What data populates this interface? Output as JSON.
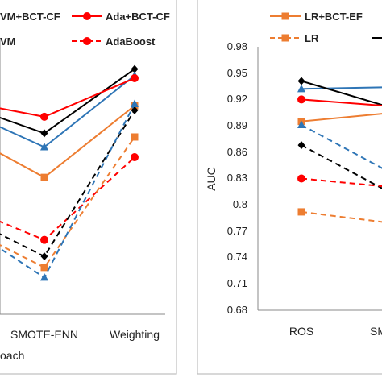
{
  "chart_data": [
    {
      "type": "line",
      "panel": "left",
      "categories": [
        "",
        "SMOTE-ENN",
        "Weighting"
      ],
      "xlabel_partial": "oach",
      "legend": [
        "VM+BCT-CF",
        "Ada+BCT-CF",
        "VM",
        "AdaBoost"
      ],
      "series": [
        {
          "name": "VM+BCT-CF",
          "color": "#000000",
          "dash": false,
          "marker": "diamond",
          "values": [
            0.912,
            0.877,
            0.947
          ]
        },
        {
          "name": "VM",
          "color": "#2E75B6",
          "dash": false,
          "marker": "triangle",
          "values": [
            0.907,
            0.862,
            0.94
          ]
        },
        {
          "name": "",
          "color": "#ED7D31",
          "dash": false,
          "marker": "square",
          "values": [
            0.883,
            0.829,
            0.907
          ]
        },
        {
          "name": "Ada+BCT-CF",
          "color": "#FF0000",
          "dash": false,
          "marker": "circle",
          "values": [
            0.914,
            0.895,
            0.937
          ]
        },
        {
          "name": "AdaBoost",
          "color": "#FF0000",
          "dash": true,
          "marker": "circle",
          "values": [
            0.802,
            0.761,
            0.851
          ]
        },
        {
          "name": "",
          "color": "#000000",
          "dash": true,
          "marker": "diamond",
          "values": [
            0.793,
            0.743,
            0.902
          ]
        },
        {
          "name": "",
          "color": "#ED7D31",
          "dash": true,
          "marker": "square",
          "values": [
            0.781,
            0.731,
            0.873
          ]
        },
        {
          "name": "",
          "color": "#2E75B6",
          "dash": true,
          "marker": "triangle",
          "values": [
            0.785,
            0.72,
            0.909
          ]
        }
      ]
    },
    {
      "type": "line",
      "panel": "right",
      "categories": [
        "ROS",
        "SM"
      ],
      "ylabel": "AUC",
      "yticks": [
        "0.98",
        "0.95",
        "0.92",
        "0.89",
        "0.86",
        "0.83",
        "0.8",
        "0.77",
        "0.74",
        "0.71",
        "0.68"
      ],
      "ylim": [
        0.68,
        0.98
      ],
      "legend": [
        "LR+BCT-EF",
        "LR"
      ],
      "series": [
        {
          "name": "",
          "color": "#2E75B6",
          "dash": false,
          "marker": "triangle",
          "values": [
            0.932,
            0.934
          ]
        },
        {
          "name": "",
          "color": "#000000",
          "dash": false,
          "marker": "diamond",
          "values": [
            0.941,
            0.91
          ]
        },
        {
          "name": "",
          "color": "#FF0000",
          "dash": false,
          "marker": "circle",
          "values": [
            0.92,
            0.912
          ]
        },
        {
          "name": "LR+BCT-EF",
          "color": "#ED7D31",
          "dash": false,
          "marker": "square",
          "values": [
            0.895,
            0.905
          ]
        },
        {
          "name": "",
          "color": "#2E75B6",
          "dash": true,
          "marker": "triangle",
          "values": [
            0.891,
            0.835
          ]
        },
        {
          "name": "",
          "color": "#000000",
          "dash": true,
          "marker": "diamond",
          "values": [
            0.868,
            0.812
          ]
        },
        {
          "name": "",
          "color": "#FF0000",
          "dash": true,
          "marker": "circle",
          "values": [
            0.83,
            0.82
          ]
        },
        {
          "name": "LR",
          "color": "#ED7D31",
          "dash": true,
          "marker": "square",
          "values": [
            0.792,
            0.779
          ]
        }
      ]
    }
  ]
}
